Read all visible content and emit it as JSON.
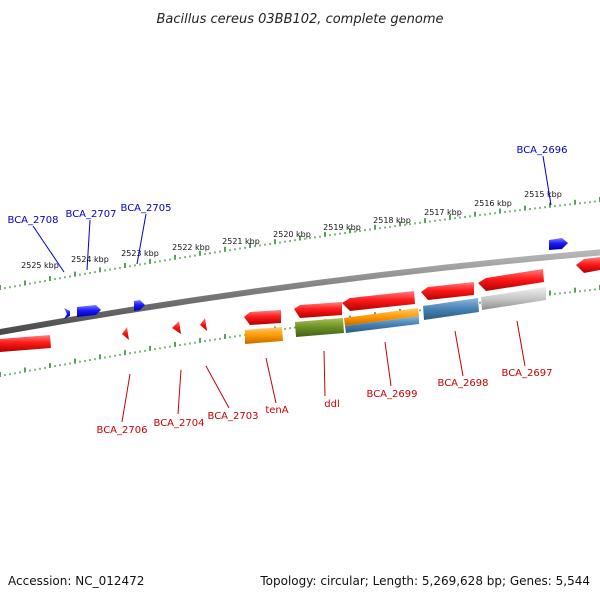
{
  "title": "Bacillus cereus 03BB102, complete genome",
  "footer": {
    "accession": "Accession: NC_012472",
    "summary": "Topology: circular; Length: 5,269,628 bp; Genes: 5,544"
  },
  "scale_labels": [
    "2525 kbp",
    "2524 kbp",
    "2523 kbp",
    "2522 kbp",
    "2521 kbp",
    "2520 kbp",
    "2519 kbp",
    "2518 kbp",
    "2517 kbp",
    "2516 kbp",
    "2515 kbp"
  ],
  "top_gene_labels": [
    "BCA_2708",
    "BCA_2707",
    "BCA_2705",
    "BCA_2696"
  ],
  "bottom_gene_labels": [
    "BCA_2706",
    "BCA_2704",
    "BCA_2703",
    "tenA",
    "ddl",
    "BCA_2699",
    "BCA_2698",
    "BCA_2697"
  ],
  "colors": {
    "backbone": "#808080",
    "tick": "#2e8b2e",
    "forward_gene": "#1a1aff",
    "reverse_gene": "#ee1111",
    "label_blue": "#0000cc",
    "label_red": "#cc0000",
    "orange": "#ff9900",
    "olive": "#6b8e23",
    "steelblue": "#4682b4",
    "gray": "#c0c0c0"
  }
}
